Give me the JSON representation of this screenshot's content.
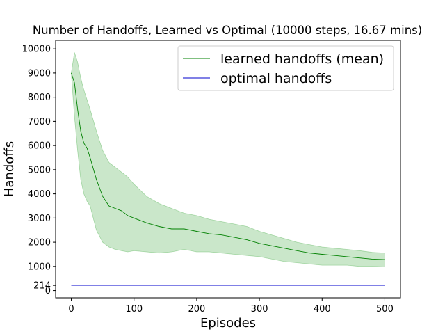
{
  "chart_data": {
    "type": "line",
    "title": "Number of Handoffs, Learned vs Optimal (10000 steps, 16.67 mins)",
    "xlabel": "Episodes",
    "ylabel": "Handoffs",
    "xlim": [
      -25,
      525
    ],
    "ylim": [
      -300,
      10350
    ],
    "xticks": [
      0,
      100,
      200,
      300,
      400,
      500
    ],
    "yticks": [
      0,
      214,
      1000,
      2000,
      3000,
      4000,
      5000,
      6000,
      7000,
      8000,
      9000,
      10000
    ],
    "legend_position": "upper right",
    "grid": false,
    "series": [
      {
        "name": "learned handoffs (mean)",
        "color": "#008000",
        "band_color": "#2ca02c",
        "band_opacity": 0.25,
        "x": [
          0,
          5,
          10,
          15,
          20,
          25,
          30,
          40,
          50,
          60,
          70,
          80,
          90,
          100,
          120,
          140,
          160,
          180,
          200,
          220,
          240,
          260,
          280,
          300,
          320,
          340,
          360,
          380,
          400,
          420,
          440,
          460,
          480,
          500
        ],
        "mean": [
          9000,
          8600,
          7500,
          6600,
          6100,
          5900,
          5500,
          4600,
          3900,
          3500,
          3400,
          3300,
          3100,
          3000,
          2800,
          2650,
          2550,
          2550,
          2450,
          2350,
          2300,
          2200,
          2100,
          1950,
          1850,
          1750,
          1650,
          1550,
          1500,
          1450,
          1400,
          1350,
          1300,
          1280
        ],
        "upper": [
          9000,
          9850,
          9450,
          8800,
          8300,
          7900,
          7500,
          6600,
          5800,
          5300,
          5100,
          4900,
          4700,
          4400,
          3900,
          3600,
          3400,
          3200,
          3100,
          2950,
          2850,
          2750,
          2650,
          2450,
          2300,
          2150,
          2000,
          1900,
          1800,
          1750,
          1700,
          1650,
          1580,
          1550
        ],
        "lower": [
          9000,
          7200,
          5800,
          4600,
          4000,
          3700,
          3500,
          2500,
          2000,
          1800,
          1700,
          1650,
          1600,
          1650,
          1600,
          1550,
          1600,
          1700,
          1600,
          1600,
          1550,
          1500,
          1450,
          1400,
          1300,
          1200,
          1150,
          1100,
          1050,
          1050,
          1050,
          1000,
          1000,
          980
        ]
      },
      {
        "name": "optimal handoffs",
        "color": "#0000cc",
        "x": [
          0,
          500
        ],
        "values": [
          214,
          214
        ]
      }
    ]
  }
}
